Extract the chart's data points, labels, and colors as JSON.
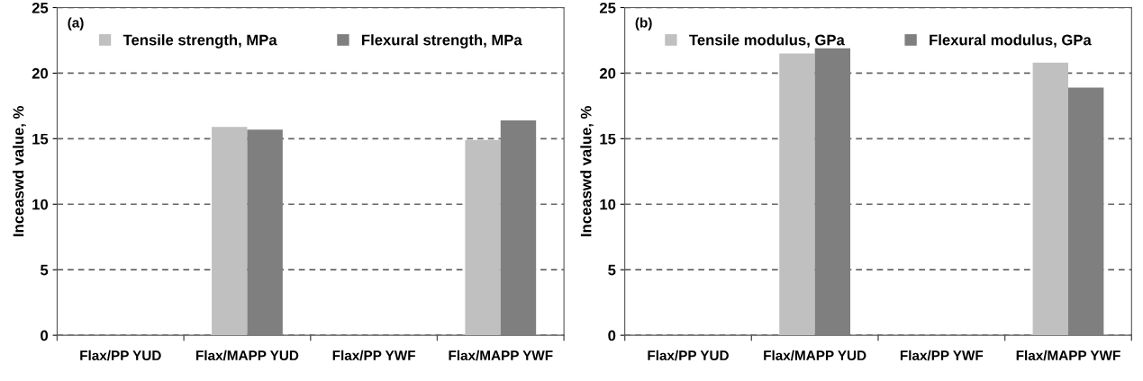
{
  "chart_data": [
    {
      "type": "bar",
      "ylabel": "Inceaswd value, %",
      "annotations": [
        "(a)"
      ],
      "categories": [
        "Flax/PP YUD",
        "Flax/MAPP YUD",
        "Flax/PP YWF",
        "Flax/MAPP YWF"
      ],
      "series": [
        {
          "name": "Tensile strength, MPa",
          "color": "#c0c0c0",
          "values": [
            null,
            15.9,
            null,
            14.9
          ]
        },
        {
          "name": "Flexural strength, MPa",
          "color": "#7f7f7f",
          "values": [
            null,
            15.7,
            null,
            16.4
          ]
        }
      ],
      "ylim": [
        0,
        25
      ],
      "yticks": [
        0,
        5,
        10,
        15,
        20,
        25
      ],
      "grid": "y",
      "legend": "top"
    },
    {
      "type": "bar",
      "ylabel": "Inceaswd value, %",
      "annotations": [
        "(b)"
      ],
      "categories": [
        "Flax/PP YUD",
        "Flax/MAPP YUD",
        "Flax/PP YWF",
        "Flax/MAPP YWF"
      ],
      "series": [
        {
          "name": "Tensile modulus, GPa",
          "color": "#c0c0c0",
          "values": [
            null,
            21.5,
            null,
            20.8
          ]
        },
        {
          "name": "Flexural modulus, GPa",
          "color": "#7f7f7f",
          "values": [
            null,
            21.9,
            null,
            18.9
          ]
        }
      ],
      "ylim": [
        0,
        25
      ],
      "yticks": [
        0,
        5,
        10,
        15,
        20,
        25
      ],
      "grid": "y",
      "legend": "top"
    }
  ]
}
